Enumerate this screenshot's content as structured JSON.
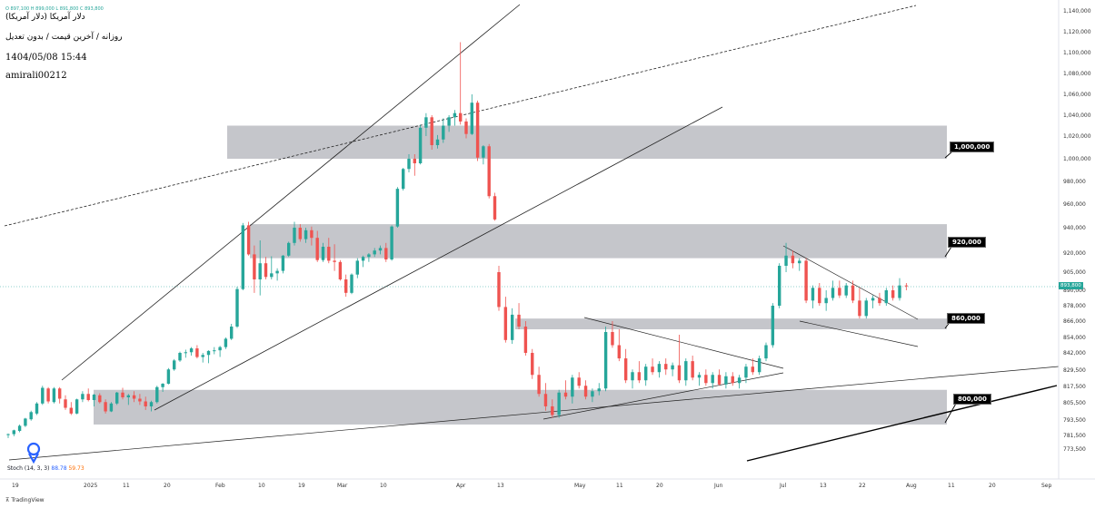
{
  "header": {
    "ohlc_text": "O 897,100  H 899,000  L 891,800  C 893,800",
    "name": "دلار آمریکا (دلار آمریکا)",
    "subtitle": "روزانه / آخرین قیمت / بدون تعدیل",
    "date": "1404/05/08 15:44",
    "user": "amirali00212"
  },
  "price_tag": "893,800",
  "indicator": {
    "name": "Stoch",
    "params": "14, 3, 3",
    "k": "88.78",
    "d": "59.73"
  },
  "branding": "TradingView",
  "level_labels": [
    "1,000,000",
    "920,000",
    "860,000",
    "800,000"
  ],
  "colors": {
    "up": "#26a69a",
    "down": "#ef5350",
    "zone": "#9598a1",
    "accent": "#2962ff"
  },
  "chart_data": {
    "type": "candlestick",
    "y_ticks": [
      "1,140,000",
      "1,120,000",
      "1,100,000",
      "1,080,000",
      "1,060,000",
      "1,040,000",
      "1,020,000",
      "1,000,000",
      "980,000",
      "960,000",
      "940,000",
      "920,000",
      "905,000",
      "890,000",
      "878,000",
      "866,000",
      "854,000",
      "842,000",
      "829,500",
      "817,500",
      "805,500",
      "793,500",
      "781,500",
      "773,500"
    ],
    "x_ticks": [
      "19",
      "2025",
      "11",
      "20",
      "Feb",
      "10",
      "19",
      "Mar",
      "10",
      "Apr",
      "13",
      "May",
      "11",
      "20",
      "Jun",
      "Jul",
      "13",
      "22",
      "Aug",
      "11",
      "20",
      "Sep"
    ],
    "zones": [
      {
        "label": "1,000,000",
        "from": 1000000,
        "to": 1030000
      },
      {
        "label": "920,000",
        "from": 916000,
        "to": 943000
      },
      {
        "label": "860,000",
        "from": 860000,
        "to": 868000
      },
      {
        "label": "800,000",
        "from": 790000,
        "to": 815000
      }
    ],
    "last_price": 893800,
    "candles": [
      [
        782000,
        783000,
        780000,
        782500
      ],
      [
        782500,
        786000,
        781000,
        785500
      ],
      [
        785000,
        790000,
        784000,
        789000
      ],
      [
        789000,
        795000,
        788000,
        794500
      ],
      [
        794000,
        800000,
        793000,
        799000
      ],
      [
        798000,
        806000,
        797000,
        805000
      ],
      [
        805000,
        818000,
        804000,
        816500
      ],
      [
        816000,
        817000,
        805000,
        806500
      ],
      [
        806000,
        817000,
        805000,
        816000
      ],
      [
        816000,
        817000,
        805000,
        808500
      ],
      [
        808000,
        811000,
        800500,
        802000
      ],
      [
        802000,
        806000,
        797000,
        798000
      ],
      [
        798000,
        808500,
        797500,
        808000
      ],
      [
        808000,
        814000,
        806000,
        812000
      ],
      [
        812000,
        816000,
        806500,
        807500
      ],
      [
        807500,
        812000,
        803000,
        811500
      ],
      [
        811000,
        812500,
        805000,
        806000
      ],
      [
        806000,
        808000,
        798000,
        799500
      ],
      [
        799500,
        806000,
        799000,
        805000
      ],
      [
        805000,
        813500,
        804000,
        813000
      ],
      [
        813000,
        816500,
        808000,
        809500
      ],
      [
        809500,
        812000,
        804000,
        811000
      ],
      [
        811000,
        814000,
        806000,
        808500
      ],
      [
        808500,
        812000,
        804000,
        806500
      ],
      [
        806500,
        810000,
        800500,
        803000
      ],
      [
        803000,
        807000,
        799500,
        806000
      ],
      [
        806000,
        818000,
        805000,
        817000
      ],
      [
        817000,
        820000,
        813500,
        819500
      ],
      [
        819500,
        831000,
        819000,
        830000
      ],
      [
        830000,
        837500,
        829000,
        836500
      ],
      [
        836500,
        843000,
        835500,
        842000
      ],
      [
        842000,
        844500,
        838500,
        842500
      ],
      [
        842500,
        846500,
        840000,
        845500
      ],
      [
        845500,
        848000,
        838000,
        839000
      ],
      [
        839000,
        842000,
        835000,
        840500
      ],
      [
        840500,
        844000,
        834500,
        843500
      ],
      [
        843500,
        846500,
        841000,
        844000
      ],
      [
        844000,
        847500,
        839000,
        846500
      ],
      [
        846500,
        854000,
        845000,
        853000
      ],
      [
        853000,
        864000,
        852000,
        862000
      ],
      [
        862000,
        893000,
        861000,
        891000
      ],
      [
        891000,
        944000,
        890000,
        942000
      ],
      [
        942000,
        945000,
        918000,
        919000
      ],
      [
        919000,
        926000,
        888000,
        899000
      ],
      [
        899000,
        930000,
        886000,
        912000
      ],
      [
        912000,
        917000,
        899000,
        901000
      ],
      [
        901000,
        917500,
        899000,
        904000
      ],
      [
        904000,
        908000,
        898000,
        906000
      ],
      [
        906000,
        918500,
        904000,
        918000
      ],
      [
        918000,
        929000,
        917000,
        928000
      ],
      [
        928000,
        945000,
        926000,
        940000
      ],
      [
        940000,
        943000,
        929000,
        931000
      ],
      [
        931000,
        940000,
        928000,
        938000
      ],
      [
        938000,
        941000,
        926000,
        932000
      ],
      [
        932000,
        937500,
        913000,
        914500
      ],
      [
        914500,
        928000,
        913000,
        925000
      ],
      [
        925000,
        932000,
        912000,
        914000
      ],
      [
        914000,
        927000,
        906000,
        913000
      ],
      [
        913000,
        914500,
        898000,
        899000
      ],
      [
        899000,
        903000,
        885000,
        888000
      ],
      [
        888000,
        904000,
        887000,
        903000
      ],
      [
        903000,
        916000,
        900000,
        914000
      ],
      [
        914000,
        918000,
        909000,
        917000
      ],
      [
        917000,
        920000,
        913000,
        919000
      ],
      [
        919000,
        924000,
        917000,
        922000
      ],
      [
        922000,
        926000,
        919000,
        924000
      ],
      [
        924000,
        928000,
        913000,
        915000
      ],
      [
        915000,
        942000,
        914000,
        941000
      ],
      [
        941000,
        975000,
        940000,
        973500
      ],
      [
        973500,
        992000,
        972000,
        991000
      ],
      [
        991000,
        1004000,
        988000,
        1000000
      ],
      [
        1000000,
        1004000,
        985000,
        996000
      ],
      [
        996000,
        1031000,
        995000,
        1028000
      ],
      [
        1028000,
        1042000,
        1020000,
        1038000
      ],
      [
        1038000,
        1040000,
        1008000,
        1012000
      ],
      [
        1012000,
        1021000,
        1009000,
        1017000
      ],
      [
        1017000,
        1037000,
        1014000,
        1030000
      ],
      [
        1030000,
        1040000,
        1024000,
        1038000
      ],
      [
        1038000,
        1045000,
        1030000,
        1042000
      ],
      [
        1042000,
        1110000,
        1031000,
        1034000
      ],
      [
        1034000,
        1037000,
        1018000,
        1022000
      ],
      [
        1022000,
        1060000,
        1021000,
        1052000
      ],
      [
        1052000,
        1054000,
        998000,
        1001000
      ],
      [
        1001000,
        1012000,
        995000,
        1011000
      ],
      [
        1011000,
        1013000,
        965000,
        967000
      ],
      [
        967000,
        970000,
        946000,
        947000
      ]
    ]
  }
}
